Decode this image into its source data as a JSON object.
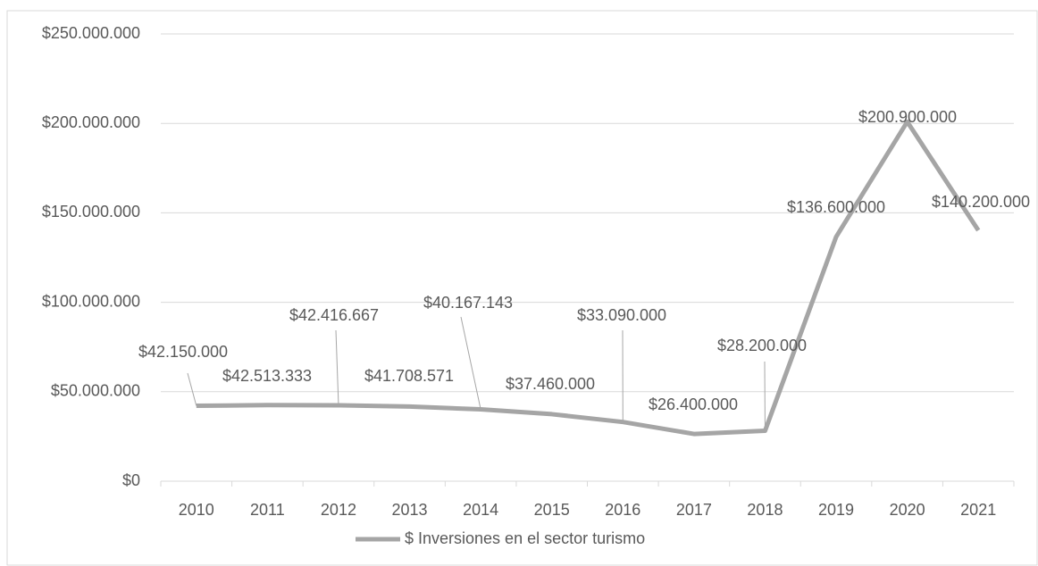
{
  "chart_data": {
    "type": "line",
    "categories": [
      "2010",
      "2011",
      "2012",
      "2013",
      "2014",
      "2015",
      "2016",
      "2017",
      "2018",
      "2019",
      "2020",
      "2021"
    ],
    "series": [
      {
        "name": "$ Inversiones en el sector turismo",
        "color": "#a5a5a5",
        "values": [
          42150000,
          42513333,
          42416667,
          41708571,
          40167143,
          37460000,
          33090000,
          26400000,
          28200000,
          136600000,
          200900000,
          140200000
        ],
        "value_labels": [
          "$42.150.000",
          "$42.513.333",
          "$42.416.667",
          "$41.708.571",
          "$40.167.143",
          "$37.460.000",
          "$33.090.000",
          "$26.400.000",
          "$28.200.000",
          "$136.600.000",
          "$200.900.000",
          "$140.200.000"
        ]
      }
    ],
    "ylim": [
      0,
      250000000
    ],
    "yticks": [
      {
        "value": 0,
        "label": "$0"
      },
      {
        "value": 50000000,
        "label": "$50.000.000"
      },
      {
        "value": 100000000,
        "label": "$100.000.000"
      },
      {
        "value": 150000000,
        "label": "$150.000.000"
      },
      {
        "value": 200000000,
        "label": "$200.000.000"
      },
      {
        "value": 250000000,
        "label": "$250.000.000"
      }
    ],
    "grid": true,
    "legend": "bottom"
  }
}
